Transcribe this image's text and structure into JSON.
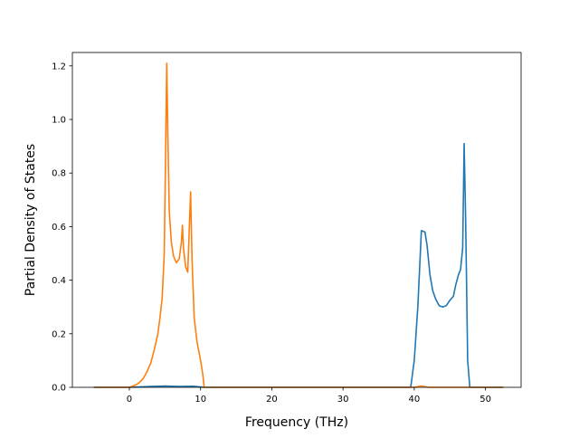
{
  "chart_data": {
    "type": "line",
    "title": "",
    "xlabel": "Frequency (THz)",
    "ylabel": "Partial Density of States",
    "xlim": [
      -8.0,
      55.0
    ],
    "ylim": [
      0,
      1.25
    ],
    "grid": false,
    "legend": "none",
    "x_ticks": [
      0,
      10,
      20,
      30,
      40,
      50
    ],
    "x_tick_labels": [
      "0",
      "10",
      "20",
      "30",
      "40",
      "50"
    ],
    "y_ticks": [
      0.0,
      0.2,
      0.4,
      0.6,
      0.8,
      1.0,
      1.2
    ],
    "y_tick_labels": [
      "0.0",
      "0.2",
      "0.4",
      "0.6",
      "0.8",
      "1.0",
      "1.2"
    ],
    "series": [
      {
        "color": "#1f77b4",
        "x": [
          -5.0,
          0.0,
          3.0,
          5.0,
          7.0,
          9.0,
          10.5,
          20.0,
          30.0,
          39.5,
          40.0,
          40.5,
          41.0,
          41.5,
          41.8,
          42.2,
          42.6,
          43.0,
          43.5,
          44.0,
          44.5,
          45.0,
          45.5,
          45.8,
          46.2,
          46.5,
          46.8,
          47.0,
          47.2,
          47.5,
          47.8,
          52.5
        ],
        "y": [
          0.0,
          0.0,
          0.003,
          0.005,
          0.003,
          0.004,
          0.0,
          0.0,
          0.0,
          0.0,
          0.1,
          0.3,
          0.585,
          0.58,
          0.53,
          0.42,
          0.36,
          0.33,
          0.305,
          0.3,
          0.305,
          0.325,
          0.34,
          0.38,
          0.42,
          0.44,
          0.52,
          0.91,
          0.65,
          0.1,
          0.0,
          0.0
        ]
      },
      {
        "color": "#ff7f0e",
        "x": [
          -5.0,
          0.0,
          0.5,
          1.0,
          1.5,
          2.0,
          2.5,
          3.0,
          3.5,
          4.0,
          4.3,
          4.6,
          4.9,
          5.1,
          5.25,
          5.4,
          5.6,
          5.9,
          6.2,
          6.6,
          7.0,
          7.3,
          7.45,
          7.6,
          7.9,
          8.2,
          8.45,
          8.6,
          8.8,
          9.1,
          9.5,
          10.0,
          10.3,
          10.5,
          20.0,
          40.0,
          41.0,
          42.0,
          43.0,
          52.5
        ],
        "y": [
          0.0,
          0.0,
          0.005,
          0.01,
          0.02,
          0.035,
          0.06,
          0.09,
          0.14,
          0.2,
          0.26,
          0.33,
          0.5,
          0.9,
          1.21,
          0.95,
          0.66,
          0.54,
          0.49,
          0.465,
          0.48,
          0.54,
          0.605,
          0.52,
          0.45,
          0.43,
          0.62,
          0.73,
          0.48,
          0.26,
          0.17,
          0.1,
          0.05,
          0.0,
          0.0,
          0.0,
          0.005,
          0.0,
          0.0,
          0.0
        ]
      }
    ]
  }
}
